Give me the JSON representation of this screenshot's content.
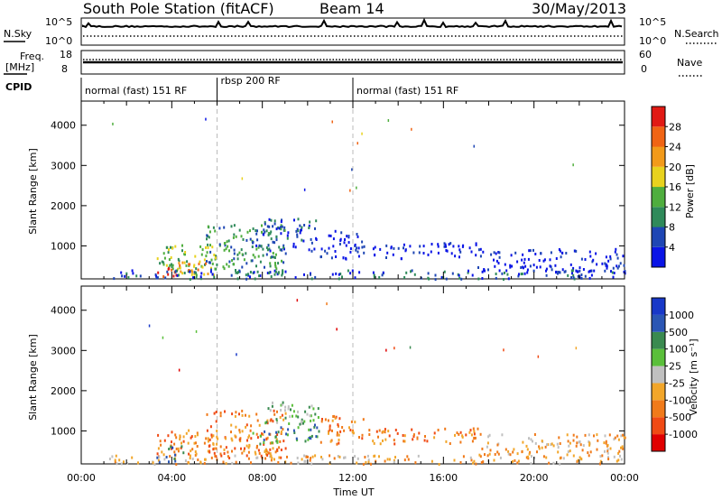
{
  "header": {
    "station": "South Pole Station (fitACF)",
    "beam": "Beam 14",
    "date": "30/May/2013"
  },
  "summary": {
    "nsky_label": "N.Sky",
    "nsky_ticks": [
      "10^5",
      "10^0"
    ],
    "nsearch_label": "N.Search",
    "freq_label_line1": "Freq.",
    "freq_label_line2": "[MHz]",
    "freq_ticks": [
      "18",
      "8"
    ],
    "nave_label": "Nave",
    "nave_ticks": [
      "60",
      "0"
    ],
    "cpid_label": "CPID"
  },
  "cpid_segments": [
    {
      "label": "normal (fast) 151 RF",
      "start": 0,
      "end": 6
    },
    {
      "label": "rbsp 200 RF",
      "start": 6,
      "end": 12
    },
    {
      "label": "normal (fast) 151 RF",
      "start": 12,
      "end": 24
    }
  ],
  "colors": {
    "power": [
      "#0a14e6",
      "#1e46b4",
      "#2f8a5a",
      "#4fae3e",
      "#e8d21e",
      "#f29a1a",
      "#f06414",
      "#e11a14"
    ],
    "velocity": [
      "#e00000",
      "#f04a14",
      "#f07a1a",
      "#f2a62a",
      "#c0c0c0",
      "#5abf3a",
      "#3a8a50",
      "#2a56b4",
      "#1838c8"
    ]
  },
  "chart_data": [
    {
      "type": "heatmap",
      "panel": "power",
      "xlabel": "",
      "ylabel": "Slant Range [km]",
      "x_range_hours": [
        0,
        24
      ],
      "ylim": [
        180,
        4600
      ],
      "y_ticks": [
        1000,
        2000,
        3000,
        4000
      ],
      "colorbar_title": "Power [dB]",
      "colorbar_ticks": [
        "4",
        "8",
        "12",
        "16",
        "20",
        "24",
        "28"
      ],
      "scatter_regions": [
        {
          "t0": 3.3,
          "t1": 6.0,
          "r0": 300,
          "r1": 1050,
          "level": 3
        },
        {
          "t0": 5.5,
          "t1": 9.0,
          "r0": 350,
          "r1": 1550,
          "level": 2
        },
        {
          "t0": 7.5,
          "t1": 10.5,
          "r0": 900,
          "r1": 1700,
          "level": 1
        },
        {
          "t0": 10.5,
          "t1": 12.5,
          "r0": 700,
          "r1": 1400,
          "level": 0
        },
        {
          "t0": 12.5,
          "t1": 17.5,
          "r0": 700,
          "r1": 1100,
          "level": 0
        },
        {
          "t0": 17.5,
          "t1": 24.0,
          "r0": 350,
          "r1": 950,
          "level": 0
        },
        {
          "t0": 3.3,
          "t1": 4.2,
          "r0": 250,
          "r1": 500,
          "level": 7
        },
        {
          "t0": 4.2,
          "t1": 6.0,
          "r0": 300,
          "r1": 650,
          "level": 5
        },
        {
          "t0": 1.0,
          "t1": 24.0,
          "r0": 200,
          "r1": 420,
          "level": 1
        }
      ]
    },
    {
      "type": "heatmap",
      "panel": "velocity",
      "xlabel": "Time UT",
      "ylabel": "Slant Range [km]",
      "x_range_hours": [
        0,
        24
      ],
      "ylim": [
        180,
        4600
      ],
      "y_ticks": [
        1000,
        2000,
        3000,
        4000
      ],
      "x_ticks": [
        "00:00",
        "04:00",
        "08:00",
        "12:00",
        "16:00",
        "20:00",
        "00:00"
      ],
      "colorbar_title": "Velocity [m s⁻¹]",
      "colorbar_ticks": [
        "-1000",
        "-500",
        "-100",
        "-25",
        "25",
        "100",
        "500",
        "1000"
      ],
      "scatter_regions": [
        {
          "t0": 3.3,
          "t1": 6.0,
          "r0": 300,
          "r1": 1050,
          "level": 2
        },
        {
          "t0": 5.5,
          "t1": 9.0,
          "r0": 350,
          "r1": 1550,
          "level": 2
        },
        {
          "t0": 8.0,
          "t1": 10.5,
          "r0": 1200,
          "r1": 1750,
          "level": 5
        },
        {
          "t0": 7.5,
          "t1": 10.5,
          "r0": 700,
          "r1": 1200,
          "level": 6
        },
        {
          "t0": 10.5,
          "t1": 12.5,
          "r0": 700,
          "r1": 1400,
          "level": 2
        },
        {
          "t0": 12.5,
          "t1": 17.5,
          "r0": 700,
          "r1": 1100,
          "level": 2
        },
        {
          "t0": 17.5,
          "t1": 24.0,
          "r0": 350,
          "r1": 950,
          "level": 3
        },
        {
          "t0": 3.3,
          "t1": 4.5,
          "r0": 250,
          "r1": 700,
          "level": 7
        },
        {
          "t0": 1.0,
          "t1": 24.0,
          "r0": 200,
          "r1": 420,
          "level": 3
        }
      ]
    }
  ]
}
